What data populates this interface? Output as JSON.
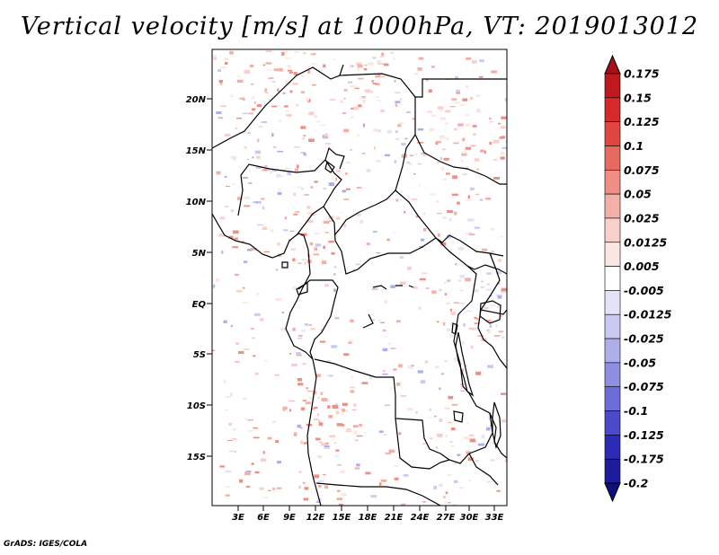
{
  "title": "Vertical velocity [m/s] at 1000hPa, VT: 2019013012",
  "credit": "GrADS: IGES/COLA",
  "map": {
    "y_ticks": [
      "20N",
      "15N",
      "10N",
      "5N",
      "EQ",
      "5S",
      "10S",
      "15S"
    ],
    "x_ticks": [
      "3E",
      "6E",
      "9E",
      "12E",
      "15E",
      "18E",
      "21E",
      "24E",
      "27E",
      "30E",
      "33E"
    ],
    "lat_range": [
      -20,
      24.5
    ],
    "lon_range": [
      0,
      34
    ],
    "lat_ticks": [
      20,
      15,
      10,
      5,
      0,
      -5,
      -10,
      -15
    ],
    "lon_ticks": [
      3,
      6,
      9,
      12,
      15,
      18,
      21,
      24,
      27,
      30,
      33
    ]
  },
  "colorbar": {
    "labels": [
      "0.175",
      "0.15",
      "0.125",
      "0.1",
      "0.075",
      "0.05",
      "0.025",
      "0.0125",
      "0.005",
      "-0.005",
      "-0.0125",
      "-0.025",
      "-0.05",
      "-0.075",
      "-0.1",
      "-0.125",
      "-0.175",
      "-0.2"
    ],
    "colors": [
      "#a50f15",
      "#c1181e",
      "#d52a2a",
      "#e0453e",
      "#e86a5f",
      "#ef8f84",
      "#f4b0a8",
      "#f8cfca",
      "#fbe6e3",
      "#ffffff",
      "#e3e3f8",
      "#c9c9f2",
      "#aeaeeb",
      "#8e8ee2",
      "#6c6cd8",
      "#4a4acb",
      "#2b2bb8",
      "#1c1c9c",
      "#10107d"
    ]
  }
}
